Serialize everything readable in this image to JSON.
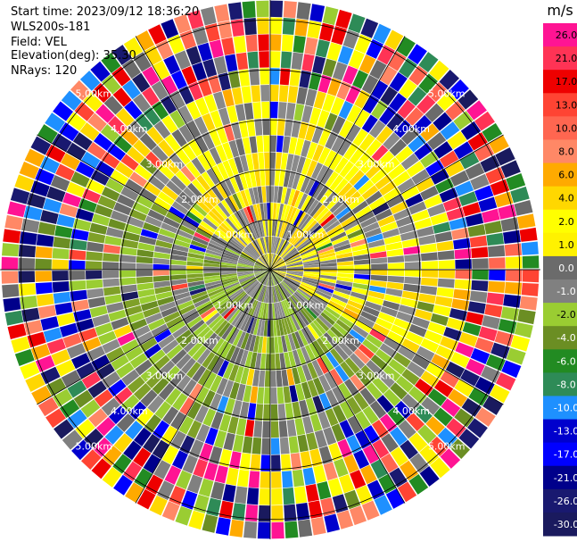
{
  "header": {
    "start_time": "Start time: 2023/09/12 18:36:20",
    "instrument": "WLS200s-181",
    "field": "Field: VEL",
    "elevation": "Elevation(deg): 35.30",
    "nrays": "NRays: 120"
  },
  "chart_data": {
    "type": "heatmap",
    "projection": "polar-ppi",
    "n_rays": 120,
    "n_range_gates": 16,
    "range_rings_km": [
      1.0,
      2.0,
      3.0,
      4.0,
      5.0
    ],
    "range_ring_labels": [
      "1.00km",
      "2.00km",
      "3.00km",
      "4.00km",
      "5.00km"
    ],
    "max_range_km": 5.4,
    "spokes_deg": [
      0,
      30,
      60,
      90,
      120,
      150,
      180,
      210,
      240,
      270,
      300,
      330
    ],
    "colorbar": {
      "unit": "m/s",
      "ticks": [
        26.0,
        21.0,
        17.0,
        13.0,
        10.0,
        8.0,
        6.0,
        4.0,
        2.0,
        1.0,
        0.0,
        -1.0,
        -2.0,
        -4.0,
        -6.0,
        -8.0,
        -10.0,
        -13.0,
        -17.0,
        -21.0,
        -26.0,
        -30.0
      ],
      "tick_labels": [
        "26.0",
        "21.0",
        "17.0",
        "13.0",
        "10.0",
        "8.0",
        "6.0",
        "4.0",
        "2.0",
        "1.0",
        "0.0",
        "-1.0",
        "-2.0",
        "-4.0",
        "-6.0",
        "-8.0",
        "-10.0",
        "-13.0",
        "-17.0",
        "-21.0",
        "-26.0",
        "-30.0"
      ],
      "colors": [
        "#ff1493",
        "#ff3355",
        "#ee0000",
        "#ff4433",
        "#ff6650",
        "#ff8866",
        "#ffaa00",
        "#ffd700",
        "#ffff00",
        "#fff200",
        "#6b6b6b",
        "#808080",
        "#9acd32",
        "#6b8e23",
        "#228b22",
        "#2e8b57",
        "#1e90ff",
        "#0000cd",
        "#0000ff",
        "#00008b",
        "#191970",
        "#1a1a5e"
      ]
    },
    "pattern": {
      "inner_gray_km": 1.0,
      "near_north_east_yellow": true,
      "south_west_green": true,
      "outer_noise_start_km": 3.6
    }
  }
}
